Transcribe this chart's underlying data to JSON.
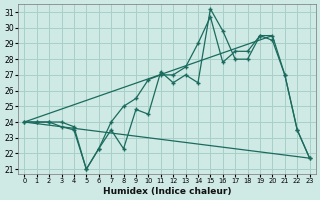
{
  "xlabel": "Humidex (Indice chaleur)",
  "xlim": [
    -0.5,
    23.5
  ],
  "ylim": [
    20.7,
    31.5
  ],
  "yticks": [
    21,
    22,
    23,
    24,
    25,
    26,
    27,
    28,
    29,
    30,
    31
  ],
  "xticks": [
    0,
    1,
    2,
    3,
    4,
    5,
    6,
    7,
    8,
    9,
    10,
    11,
    12,
    13,
    14,
    15,
    16,
    17,
    18,
    19,
    20,
    21,
    22,
    23
  ],
  "bg_color": "#cfe9e5",
  "grid_color": "#a8cfc9",
  "line_color": "#1a6b5e",
  "line1_y": [
    24.0,
    24.0,
    24.0,
    23.7,
    23.5,
    21.0,
    22.3,
    23.5,
    22.3,
    24.8,
    24.5,
    27.2,
    26.5,
    27.0,
    26.5,
    31.2,
    29.8,
    28.0,
    28.0,
    29.5,
    29.2,
    27.0,
    23.5,
    21.7
  ],
  "line2_y": [
    24.0,
    24.0,
    24.0,
    24.0,
    23.7,
    21.0,
    22.3,
    24.0,
    25.0,
    25.5,
    26.7,
    27.0,
    27.0,
    27.5,
    29.0,
    30.7,
    27.8,
    28.5,
    28.5,
    29.5,
    29.5,
    27.0,
    23.5,
    21.7
  ],
  "line3_x": [
    0,
    20
  ],
  "line3_y": [
    24.0,
    29.5
  ],
  "line4_x": [
    0,
    23
  ],
  "line4_y": [
    24.0,
    21.7
  ]
}
